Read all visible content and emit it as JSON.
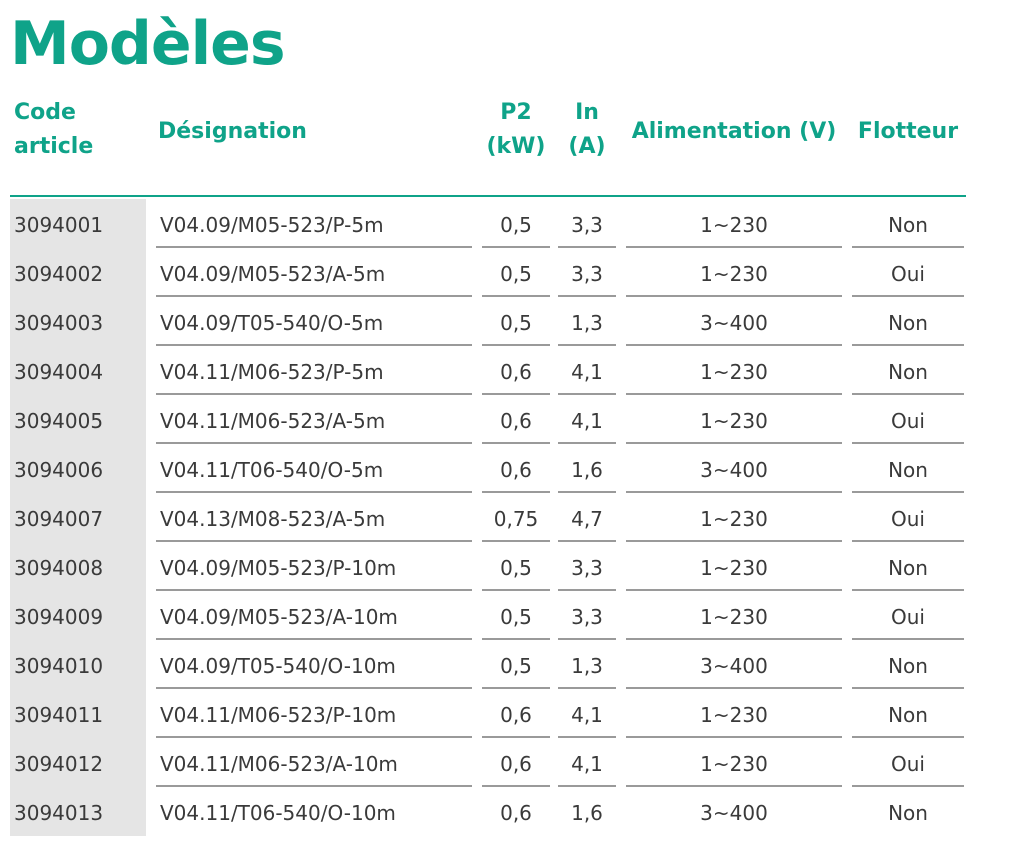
{
  "title": "Modèles",
  "columns": {
    "code": [
      "Code",
      "article"
    ],
    "designation": "Désignation",
    "p2": [
      "P2",
      "(kW)"
    ],
    "in": [
      "In",
      "(A)"
    ],
    "alimentation": "Alimentation (V)",
    "flotteur": "Flotteur"
  },
  "rows": [
    {
      "code": "3094001",
      "designation": "V04.09/M05-523/P-5m",
      "p2": "0,5",
      "in": "3,3",
      "alimentation": "1~230",
      "flotteur": "Non"
    },
    {
      "code": "3094002",
      "designation": "V04.09/M05-523/A-5m",
      "p2": "0,5",
      "in": "3,3",
      "alimentation": "1~230",
      "flotteur": "Oui"
    },
    {
      "code": "3094003",
      "designation": "V04.09/T05-540/O-5m",
      "p2": "0,5",
      "in": "1,3",
      "alimentation": "3~400",
      "flotteur": "Non"
    },
    {
      "code": "3094004",
      "designation": "V04.11/M06-523/P-5m",
      "p2": "0,6",
      "in": "4,1",
      "alimentation": "1~230",
      "flotteur": "Non"
    },
    {
      "code": "3094005",
      "designation": "V04.11/M06-523/A-5m",
      "p2": "0,6",
      "in": "4,1",
      "alimentation": "1~230",
      "flotteur": "Oui"
    },
    {
      "code": "3094006",
      "designation": "V04.11/T06-540/O-5m",
      "p2": "0,6",
      "in": "1,6",
      "alimentation": "3~400",
      "flotteur": "Non"
    },
    {
      "code": "3094007",
      "designation": "V04.13/M08-523/A-5m",
      "p2": "0,75",
      "in": "4,7",
      "alimentation": "1~230",
      "flotteur": "Oui"
    },
    {
      "code": "3094008",
      "designation": "V04.09/M05-523/P-10m",
      "p2": "0,5",
      "in": "3,3",
      "alimentation": "1~230",
      "flotteur": "Non"
    },
    {
      "code": "3094009",
      "designation": "V04.09/M05-523/A-10m",
      "p2": "0,5",
      "in": "3,3",
      "alimentation": "1~230",
      "flotteur": "Oui"
    },
    {
      "code": "3094010",
      "designation": "V04.09/T05-540/O-10m",
      "p2": "0,5",
      "in": "1,3",
      "alimentation": "3~400",
      "flotteur": "Non"
    },
    {
      "code": "3094011",
      "designation": "V04.11/M06-523/P-10m",
      "p2": "0,6",
      "in": "4,1",
      "alimentation": "1~230",
      "flotteur": "Non"
    },
    {
      "code": "3094012",
      "designation": "V04.11/M06-523/A-10m",
      "p2": "0,6",
      "in": "4,1",
      "alimentation": "1~230",
      "flotteur": "Oui"
    },
    {
      "code": "3094013",
      "designation": "V04.11/T06-540/O-10m",
      "p2": "0,6",
      "in": "1,6",
      "alimentation": "3~400",
      "flotteur": "Non"
    }
  ],
  "colors": {
    "accent": "#0fa389",
    "text": "#3a3a3a",
    "code_column_bg": "#e5e5e5",
    "row_rule": "#9a9a9a"
  }
}
